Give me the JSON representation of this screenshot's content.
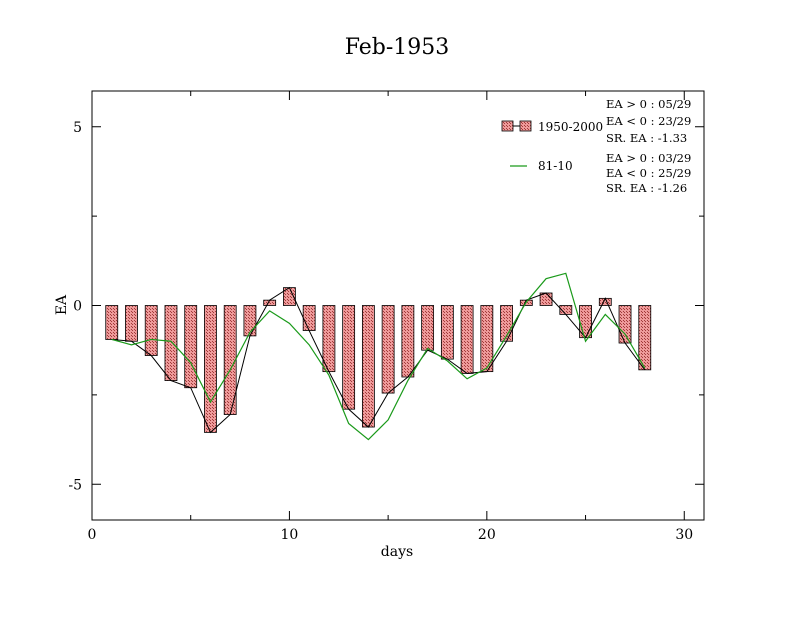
{
  "chart_data": {
    "type": "bar",
    "title": "Feb-1953",
    "xlabel": "days",
    "ylabel": "EA",
    "xlim": [
      0,
      31
    ],
    "ylim": [
      -6,
      6
    ],
    "xticks": [
      0,
      10,
      20,
      30
    ],
    "xtick_labels": [
      "0",
      "10",
      "20",
      "30"
    ],
    "yticks": [
      5,
      0,
      -5
    ],
    "ytick_labels": [
      "5",
      "0",
      "-5"
    ],
    "grid": false,
    "legend_position": "top-right",
    "x": [
      1,
      2,
      3,
      4,
      5,
      6,
      7,
      8,
      9,
      10,
      11,
      12,
      13,
      14,
      15,
      16,
      17,
      18,
      19,
      20,
      21,
      22,
      23,
      24,
      25,
      26,
      27,
      28
    ],
    "series": [
      {
        "name": "1950-2000",
        "kind": "bar",
        "color": "#e88a8a",
        "values": [
          -0.95,
          -1.0,
          -1.4,
          -2.1,
          -2.3,
          -3.55,
          -3.05,
          -0.85,
          0.15,
          0.5,
          -0.7,
          -1.85,
          -2.9,
          -3.4,
          -2.45,
          -2.0,
          -1.25,
          -1.5,
          -1.9,
          -1.85,
          -1.0,
          0.15,
          0.35,
          -0.25,
          -0.9,
          0.2,
          -1.05,
          -1.8
        ]
      },
      {
        "name": "81-10",
        "kind": "line",
        "color": "#1a9a1a",
        "values": [
          -0.95,
          -1.1,
          -0.95,
          -1.0,
          -1.6,
          -2.7,
          -1.8,
          -0.75,
          -0.15,
          -0.5,
          -1.1,
          -1.95,
          -3.3,
          -3.75,
          -3.2,
          -2.1,
          -1.2,
          -1.55,
          -2.05,
          -1.75,
          -0.85,
          0.1,
          0.75,
          0.9,
          -1.0,
          -0.25,
          -0.8,
          -1.75
        ]
      }
    ],
    "annotations": {
      "series1_stats": [
        "EA > 0 : 05/29",
        "EA < 0 : 23/29",
        "SR. EA : -1.33"
      ],
      "series2_stats": [
        "EA > 0 : 03/29",
        "EA < 0 : 25/29",
        "SR. EA : -1.26"
      ]
    }
  }
}
